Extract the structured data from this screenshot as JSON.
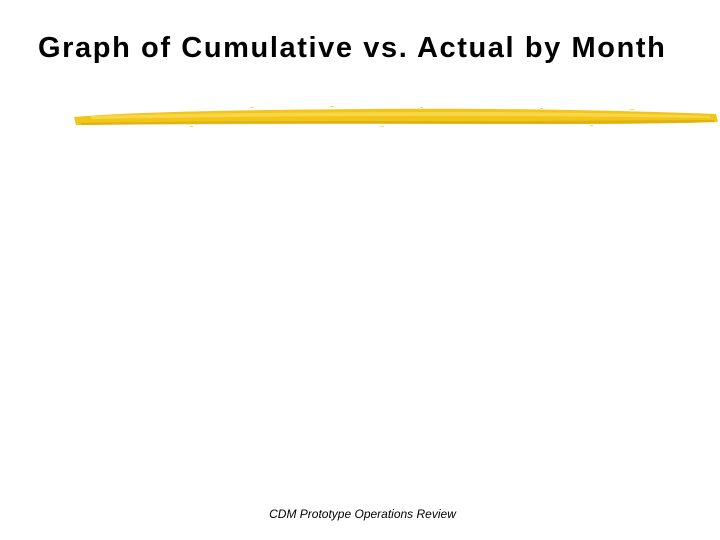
{
  "slide": {
    "title": "Graph of Cumulative vs. Actual by Month",
    "footer": "CDM Prototype Operations Review",
    "accent_color": "#F2C518"
  }
}
